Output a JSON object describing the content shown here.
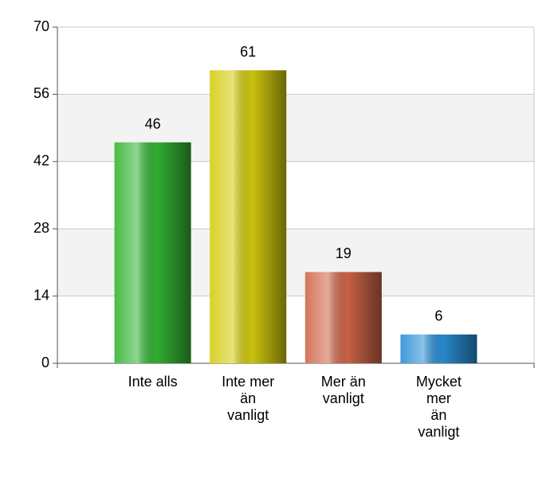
{
  "chart_data": {
    "type": "bar",
    "categories": [
      [
        "Inte alls"
      ],
      [
        "Inte mer",
        "än",
        "vanligt"
      ],
      [
        "Mer än",
        "vanligt"
      ],
      [
        "Mycket",
        "mer",
        "än",
        "vanligt"
      ]
    ],
    "values": [
      46,
      61,
      19,
      6
    ],
    "colors": [
      "#33b533",
      "#d4cc10",
      "#d0664a",
      "#2a8fd6"
    ],
    "ylim": [
      0,
      70
    ],
    "yticks": [
      0,
      14,
      28,
      42,
      56,
      70
    ],
    "grid": true
  }
}
